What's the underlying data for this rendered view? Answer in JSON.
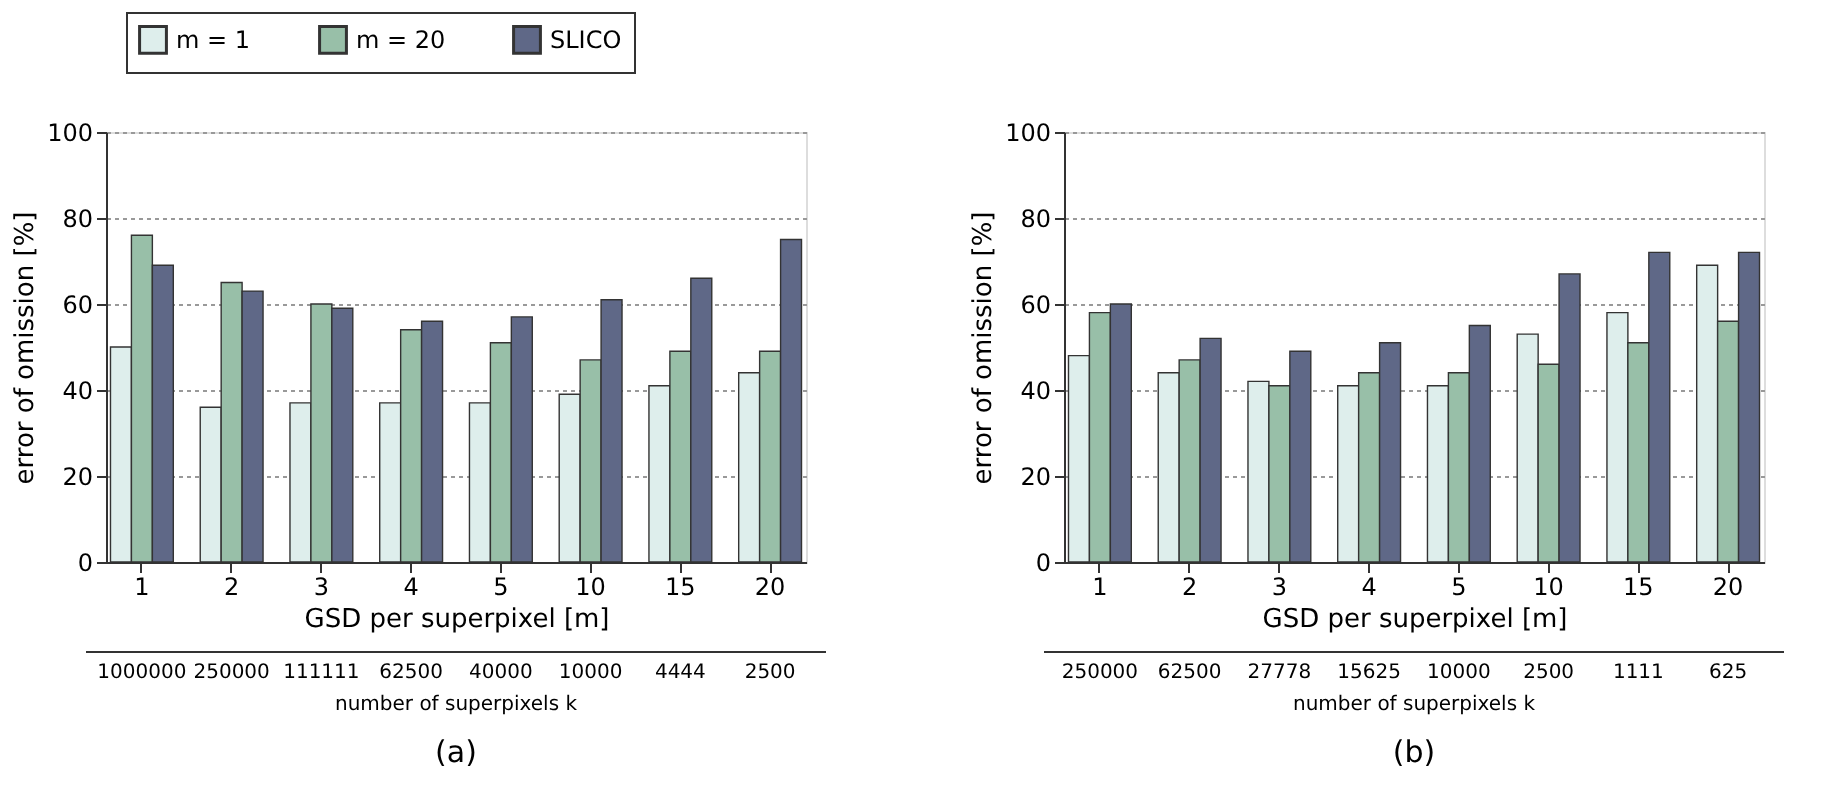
{
  "chart_data": [
    {
      "type": "bar",
      "xlabel": "GSD per superpixel [m]",
      "ylabel": "error of omission [%]",
      "x2label": "number of superpixels k",
      "categories": [
        "1",
        "2",
        "3",
        "4",
        "5",
        "10",
        "15",
        "20"
      ],
      "series": [
        {
          "name": "m = 1",
          "color": "#deeeec",
          "values": [
            50,
            36,
            37,
            37,
            37,
            39,
            41,
            44
          ]
        },
        {
          "name": "m = 20",
          "color": "#98bfa8",
          "values": [
            76,
            65,
            60,
            54,
            51,
            47,
            49,
            49
          ]
        },
        {
          "name": "SLICO",
          "color": "#5f6887",
          "values": [
            69,
            63,
            59,
            56,
            57,
            61,
            66,
            75
          ]
        }
      ],
      "ylim": [
        0,
        100
      ],
      "yticks": [
        0,
        20,
        40,
        60,
        80,
        100
      ],
      "grid": "y",
      "legend": "top",
      "annotations": [
        "1000000",
        "250000",
        "111111",
        "62500",
        "40000",
        "10000",
        "4444",
        "2500",
        "(a)"
      ]
    },
    {
      "type": "bar",
      "xlabel": "GSD per superpixel [m]",
      "ylabel": "error of omission [%]",
      "x2label": "number of superpixels k",
      "categories": [
        "1",
        "2",
        "3",
        "4",
        "5",
        "10",
        "15",
        "20"
      ],
      "series": [
        {
          "name": "m = 1",
          "color": "#deeeec",
          "values": [
            48,
            44,
            42,
            41,
            41,
            53,
            58,
            69
          ]
        },
        {
          "name": "m = 20",
          "color": "#98bfa8",
          "values": [
            58,
            47,
            41,
            44,
            44,
            46,
            51,
            56
          ]
        },
        {
          "name": "SLICO",
          "color": "#5f6887",
          "values": [
            60,
            52,
            49,
            51,
            55,
            67,
            72,
            72
          ]
        }
      ],
      "ylim": [
        0,
        100
      ],
      "yticks": [
        0,
        20,
        40,
        60,
        80,
        100
      ],
      "grid": "y",
      "legend": "top",
      "annotations": [
        "250000",
        "62500",
        "27778",
        "15625",
        "10000",
        "2500",
        "1111",
        "625",
        "(b)"
      ]
    }
  ]
}
